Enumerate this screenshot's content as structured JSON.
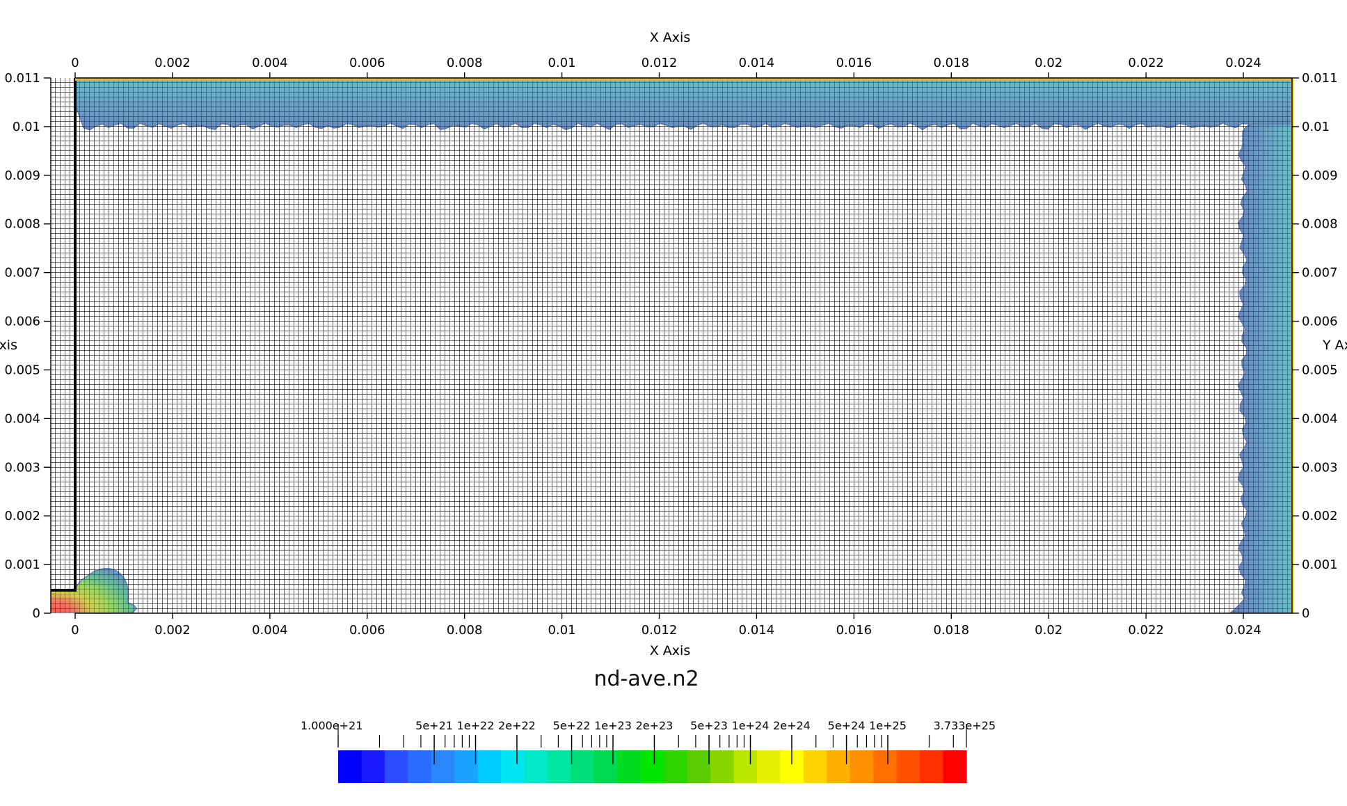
{
  "chart_data": {
    "type": "heatmap",
    "title": "nd-ave.n2",
    "xlabel": "X Axis",
    "ylabel": "Y Axis",
    "xlim": [
      0,
      0.025
    ],
    "ylim": [
      0,
      0.011
    ],
    "x_ticks": [
      "0",
      "0.002",
      "0.004",
      "0.006",
      "0.008",
      "0.01",
      "0.012",
      "0.014",
      "0.016",
      "0.018",
      "0.02",
      "0.022",
      "0.024"
    ],
    "y_ticks": [
      "0",
      "0.001",
      "0.002",
      "0.003",
      "0.004",
      "0.005",
      "0.006",
      "0.007",
      "0.008",
      "0.009",
      "0.01",
      "0.011"
    ],
    "grid": true,
    "mesh_color": "#000000",
    "boundary_color": "#f2b41b",
    "colorbar": {
      "scale": "log",
      "range": [
        1e+21,
        3.733e+25
      ],
      "min_label": "1.000e+21",
      "max_label": "3.733e+25",
      "tick_labels": [
        "5e+21",
        "1e+22",
        "2e+22",
        "5e+22",
        "1e+23",
        "2e+23",
        "5e+23",
        "1e+24",
        "2e+24",
        "5e+24",
        "1e+25"
      ],
      "tick_values": [
        5e+21,
        1e+22,
        2e+22,
        5e+22,
        1e+23,
        2e+23,
        5e+23,
        1e+24,
        2e+24,
        5e+24,
        1e+25
      ],
      "colors": [
        "#0000ff",
        "#1a1aff",
        "#2a4dff",
        "#2a6cff",
        "#2a87ff",
        "#1aa4ff",
        "#00ccff",
        "#00e5f0",
        "#00e8c8",
        "#00e6a0",
        "#00de78",
        "#00d850",
        "#00dd20",
        "#00e600",
        "#2cd400",
        "#5acd00",
        "#8ad600",
        "#bbe600",
        "#e5f000",
        "#ffff00",
        "#ffd400",
        "#ffb000",
        "#ff9000",
        "#ff7000",
        "#ff5000",
        "#ff3000",
        "#ff0000"
      ]
    },
    "regions": [
      {
        "name": "top-band",
        "color": "#1f6aa8",
        "value_range": [
          1e+21,
          5e+21
        ]
      },
      {
        "name": "right-band",
        "color": "#1a4f9a",
        "value_range": [
          1e+21,
          5e+21
        ]
      },
      {
        "name": "inlet-blob",
        "color_low": "#1aa060",
        "color_high": "#ff1010",
        "value_range": [
          1e+22,
          3.733e+25
        ]
      }
    ]
  }
}
